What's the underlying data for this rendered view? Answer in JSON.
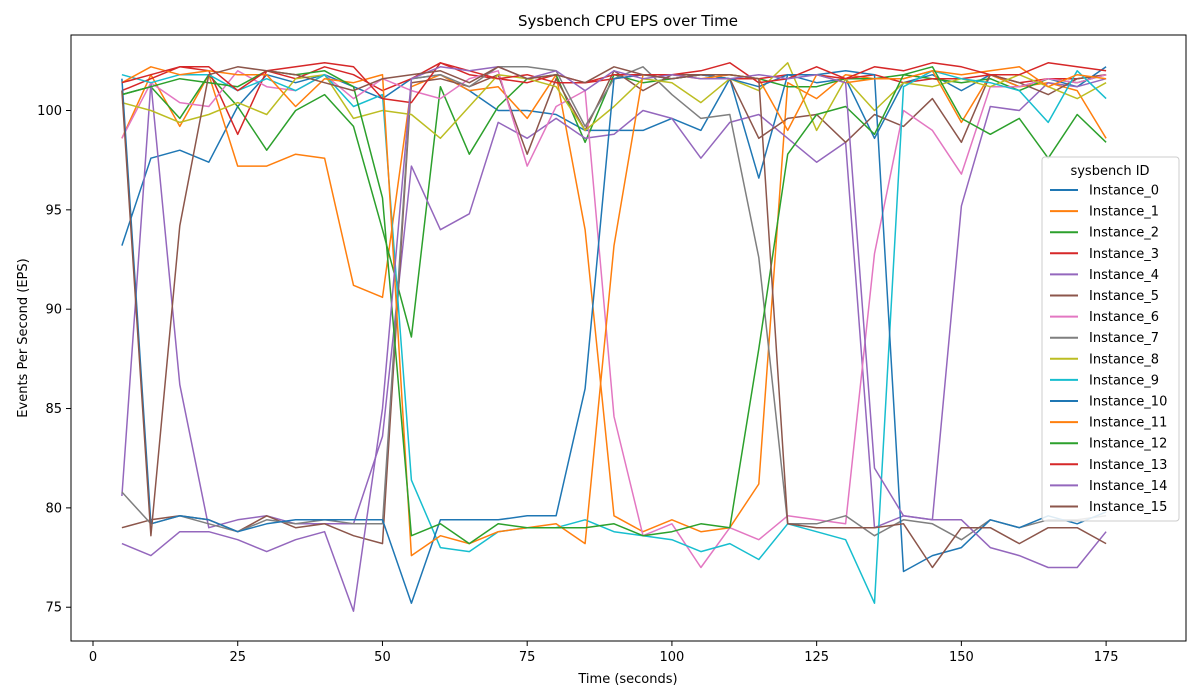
{
  "chart_data": {
    "type": "line",
    "title": "Sysbench CPU EPS over Time",
    "xlabel": "Time (seconds)",
    "ylabel": "Events Per Second (EPS)",
    "xlim": [
      -3.8,
      188.8
    ],
    "ylim": [
      73.3,
      103.8
    ],
    "xticks": [
      0,
      25,
      50,
      75,
      100,
      125,
      150,
      175
    ],
    "yticks": [
      75,
      80,
      85,
      90,
      95,
      100
    ],
    "grid": false,
    "legend": {
      "title": "sysbench ID",
      "position": "right"
    },
    "x": [
      5,
      10,
      15,
      20,
      25,
      30,
      35,
      40,
      45,
      50,
      55,
      60,
      65,
      70,
      75,
      80,
      85,
      90,
      95,
      100,
      105,
      110,
      115,
      120,
      125,
      130,
      135,
      140,
      145,
      150,
      155,
      160,
      165,
      170,
      175
    ],
    "series": [
      {
        "name": "Instance_0",
        "color": "#1f77b4",
        "values": [
          93.2,
          97.6,
          98.0,
          97.4,
          100.2,
          101.8,
          101.4,
          101.8,
          101.2,
          100.6,
          101.6,
          101.8,
          101.0,
          100.0,
          100.0,
          99.8,
          99.0,
          99.0,
          99.0,
          99.6,
          99.0,
          101.6,
          96.6,
          101.8,
          101.4,
          101.6,
          98.6,
          101.4,
          101.8,
          101.0,
          101.8,
          101.2,
          101.6,
          101.2,
          102.2
        ]
      },
      {
        "name": "Instance_1",
        "color": "#ff7f0e",
        "values": [
          98.6,
          101.8,
          99.2,
          101.8,
          97.2,
          97.2,
          97.8,
          97.6,
          91.2,
          90.6,
          101.2,
          101.8,
          101.0,
          101.2,
          99.6,
          101.8,
          94.0,
          79.6,
          78.8,
          79.4,
          78.8,
          79.0,
          81.2,
          101.4,
          100.6,
          101.8,
          101.6,
          101.6,
          102.0,
          99.4,
          101.8,
          101.2,
          101.4,
          101.0,
          98.6
        ]
      },
      {
        "name": "Instance_2",
        "color": "#2ca02c",
        "values": [
          100.8,
          101.2,
          99.6,
          101.8,
          100.2,
          98.0,
          100.0,
          100.8,
          99.2,
          94.0,
          88.6,
          101.2,
          97.8,
          100.2,
          101.6,
          101.8,
          98.4,
          101.8,
          101.4,
          101.6,
          101.8,
          101.8,
          101.6,
          101.2,
          101.2,
          101.6,
          101.6,
          101.8,
          101.6,
          101.4,
          101.6,
          101.0,
          101.6,
          101.4,
          101.8
        ]
      },
      {
        "name": "Instance_3",
        "color": "#d62728",
        "values": [
          101.0,
          101.6,
          102.2,
          102.0,
          98.8,
          102.0,
          101.6,
          102.2,
          101.8,
          101.0,
          101.6,
          102.4,
          101.8,
          101.6,
          101.4,
          101.8,
          101.4,
          101.6,
          101.8,
          101.8,
          101.8,
          101.6,
          101.6,
          101.8,
          101.8,
          101.6,
          101.8,
          101.4,
          101.6,
          101.6,
          101.8,
          101.4,
          101.6,
          101.6,
          101.8
        ]
      },
      {
        "name": "Instance_4",
        "color": "#9467bd",
        "values": [
          80.6,
          101.4,
          86.2,
          79.0,
          79.4,
          79.6,
          79.2,
          79.2,
          79.2,
          83.6,
          97.2,
          94.0,
          94.8,
          99.4,
          98.6,
          99.6,
          98.6,
          98.8,
          100.0,
          99.6,
          97.6,
          99.4,
          99.8,
          98.6,
          97.4,
          98.4,
          79.0,
          79.6,
          79.4,
          95.2,
          100.2,
          100.0,
          101.4,
          101.2,
          101.6
        ]
      },
      {
        "name": "Instance_5",
        "color": "#8c564b",
        "values": [
          79.0,
          79.4,
          79.6,
          79.4,
          78.8,
          79.6,
          79.0,
          79.2,
          78.6,
          78.2,
          101.4,
          101.6,
          101.2,
          101.8,
          97.8,
          101.6,
          99.0,
          102.0,
          101.0,
          101.8,
          101.8,
          101.6,
          98.6,
          99.6,
          99.8,
          98.4,
          99.8,
          99.2,
          100.6,
          98.4,
          101.8,
          101.4,
          100.8,
          101.6,
          101.8
        ]
      },
      {
        "name": "Instance_6",
        "color": "#e377c2",
        "values": [
          98.6,
          101.4,
          100.4,
          100.2,
          102.0,
          101.2,
          101.0,
          101.8,
          100.6,
          101.6,
          101.0,
          100.6,
          101.6,
          102.0,
          97.2,
          100.2,
          101.0,
          84.6,
          78.6,
          79.2,
          77.0,
          79.0,
          78.4,
          79.6,
          79.4,
          79.2,
          92.8,
          100.0,
          99.0,
          96.8,
          101.2,
          101.2,
          101.6,
          101.4,
          101.8
        ]
      },
      {
        "name": "Instance_7",
        "color": "#7f7f7f",
        "values": [
          80.8,
          79.2,
          79.6,
          79.2,
          78.8,
          79.4,
          79.2,
          79.4,
          79.2,
          79.2,
          101.6,
          101.8,
          101.2,
          102.2,
          102.2,
          102.0,
          99.2,
          101.6,
          102.2,
          100.8,
          99.6,
          99.8,
          92.6,
          79.2,
          79.2,
          79.6,
          78.6,
          79.4,
          79.2,
          78.4,
          79.4,
          79.0,
          79.4,
          79.4,
          79.6
        ]
      },
      {
        "name": "Instance_8",
        "color": "#bcbd22",
        "values": [
          100.4,
          100.0,
          99.4,
          99.8,
          100.4,
          99.8,
          101.6,
          101.8,
          99.6,
          100.0,
          99.8,
          98.6,
          100.2,
          101.8,
          101.6,
          101.2,
          99.0,
          100.2,
          101.6,
          101.4,
          100.4,
          101.6,
          101.0,
          102.4,
          99.0,
          101.6,
          100.0,
          101.4,
          101.2,
          101.6,
          101.2,
          101.8,
          101.2,
          100.6,
          101.4
        ]
      },
      {
        "name": "Instance_9",
        "color": "#17becf",
        "values": [
          101.8,
          101.4,
          101.8,
          101.8,
          101.0,
          101.6,
          101.0,
          101.8,
          100.2,
          100.8,
          81.4,
          78.0,
          77.8,
          78.8,
          79.0,
          79.0,
          79.4,
          78.8,
          78.6,
          78.4,
          77.8,
          78.2,
          77.4,
          79.2,
          78.8,
          78.4,
          75.2,
          101.2,
          102.0,
          101.6,
          101.4,
          101.0,
          99.4,
          102.0,
          100.6
        ]
      },
      {
        "name": "Instance_10",
        "color": "#1f77b4",
        "values": [
          101.6,
          79.2,
          79.6,
          79.4,
          78.8,
          79.2,
          79.4,
          79.4,
          79.4,
          79.4,
          75.2,
          79.4,
          79.4,
          79.4,
          79.6,
          79.6,
          86.0,
          101.6,
          101.8,
          101.6,
          101.8,
          101.6,
          101.2,
          101.8,
          101.8,
          102.0,
          101.8,
          76.8,
          77.6,
          78.0,
          79.4,
          79.0,
          79.6,
          79.2,
          79.8
        ]
      },
      {
        "name": "Instance_11",
        "color": "#ff7f0e",
        "values": [
          101.4,
          102.2,
          101.8,
          102.0,
          101.8,
          101.8,
          100.2,
          101.6,
          101.4,
          101.8,
          77.6,
          78.6,
          78.2,
          78.8,
          79.0,
          79.2,
          78.2,
          93.2,
          101.8,
          101.8,
          101.6,
          101.8,
          101.6,
          99.0,
          101.8,
          101.4,
          101.6,
          101.6,
          102.0,
          101.8,
          102.0,
          102.2,
          101.2,
          101.8,
          101.6
        ]
      },
      {
        "name": "Instance_12",
        "color": "#2ca02c",
        "values": [
          100.8,
          101.2,
          101.6,
          101.4,
          101.2,
          102.0,
          101.8,
          102.0,
          101.2,
          95.6,
          78.6,
          79.2,
          78.2,
          79.2,
          79.0,
          79.0,
          79.0,
          79.2,
          78.6,
          78.8,
          79.2,
          79.0,
          88.0,
          97.8,
          99.8,
          100.2,
          98.8,
          101.8,
          102.2,
          99.6,
          98.8,
          99.6,
          97.6,
          99.8,
          98.4
        ]
      },
      {
        "name": "Instance_13",
        "color": "#d62728",
        "values": [
          101.4,
          101.8,
          102.2,
          102.2,
          101.0,
          102.0,
          102.2,
          102.4,
          102.2,
          100.6,
          100.4,
          102.4,
          102.0,
          101.6,
          101.8,
          101.4,
          101.4,
          101.8,
          101.8,
          101.8,
          102.0,
          102.4,
          101.4,
          101.6,
          102.2,
          101.6,
          102.2,
          102.0,
          102.4,
          102.2,
          101.8,
          101.8,
          102.4,
          102.2,
          102.0
        ]
      },
      {
        "name": "Instance_14",
        "color": "#9467bd",
        "values": [
          78.2,
          77.6,
          78.8,
          78.8,
          78.4,
          77.8,
          78.4,
          78.8,
          74.8,
          85.0,
          101.6,
          102.2,
          102.0,
          102.2,
          101.6,
          102.0,
          101.0,
          102.0,
          101.6,
          101.8,
          101.6,
          101.6,
          101.8,
          101.6,
          101.8,
          101.4,
          82.0,
          79.6,
          79.4,
          79.4,
          78.0,
          77.6,
          77.0,
          77.0,
          78.8
        ]
      },
      {
        "name": "Instance_15",
        "color": "#8c564b",
        "values": [
          101.0,
          78.6,
          94.2,
          101.8,
          102.2,
          102.0,
          101.8,
          101.4,
          101.0,
          101.6,
          101.8,
          102.0,
          101.4,
          102.2,
          101.6,
          101.8,
          101.4,
          102.2,
          101.8,
          101.6,
          101.8,
          101.8,
          101.6,
          79.2,
          79.0,
          79.0,
          79.0,
          79.2,
          77.0,
          79.0,
          79.0,
          78.2,
          79.0,
          79.0,
          78.2
        ]
      }
    ]
  }
}
